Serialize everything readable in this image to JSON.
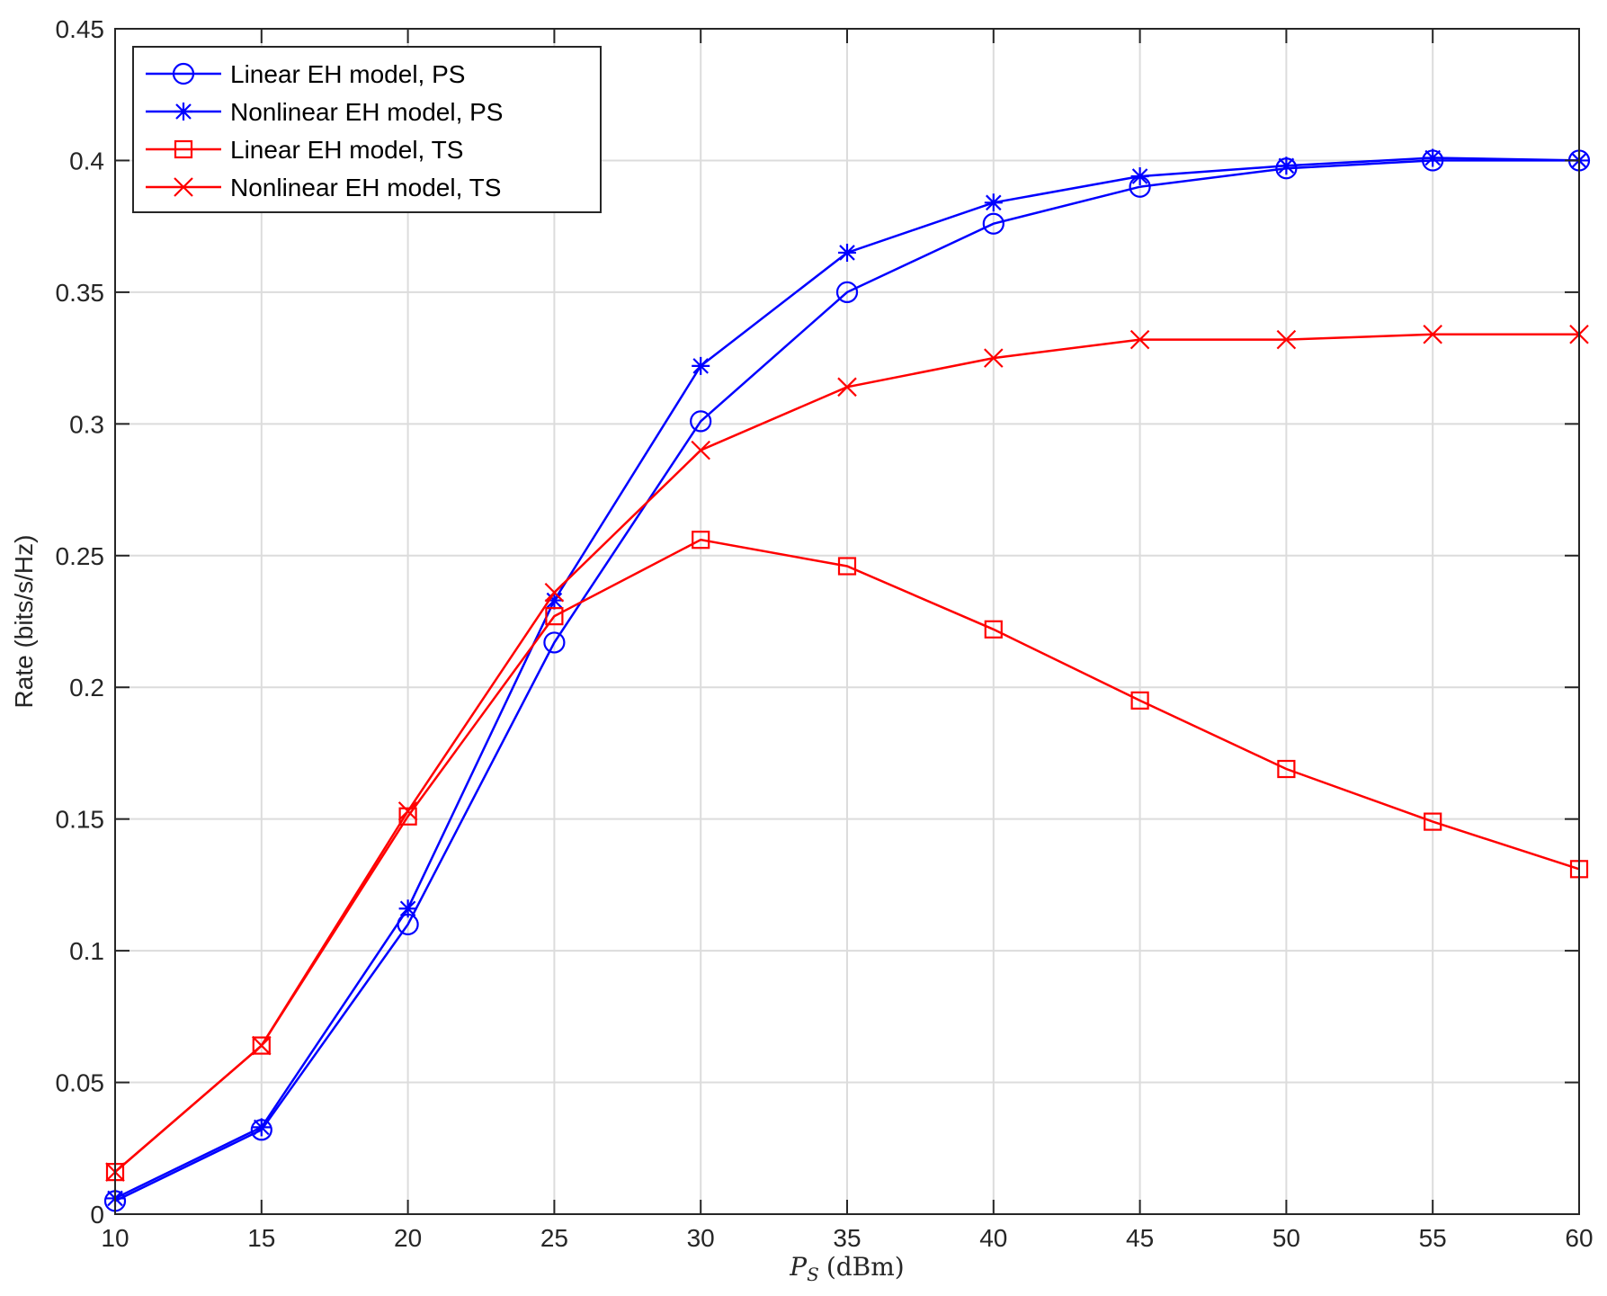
{
  "chart_data": {
    "type": "line",
    "title": "",
    "xlabel": {
      "symbol": "P",
      "subscript": "S",
      "unit": "(dBm)"
    },
    "ylabel": "Rate (bits/s/Hz)",
    "xlim": [
      10,
      60
    ],
    "ylim": [
      0,
      0.45
    ],
    "x_ticks": [
      10,
      15,
      20,
      25,
      30,
      35,
      40,
      45,
      50,
      55,
      60
    ],
    "y_ticks": [
      0,
      0.05,
      0.1,
      0.15,
      0.2,
      0.25,
      0.3,
      0.35,
      0.4,
      0.45
    ],
    "x_tick_labels": [
      "10",
      "15",
      "20",
      "25",
      "30",
      "35",
      "40",
      "45",
      "50",
      "55",
      "60"
    ],
    "y_tick_labels": [
      "0",
      "0.05",
      "0.1",
      "0.15",
      "0.2",
      "0.25",
      "0.3",
      "0.35",
      "0.4",
      "0.45"
    ],
    "grid": true,
    "legend_position": "top-left",
    "x": [
      10,
      15,
      20,
      25,
      30,
      35,
      40,
      45,
      50,
      55,
      60
    ],
    "series": [
      {
        "name": "Linear EH model, PS",
        "color": "#0000ff",
        "marker": "circle",
        "values": [
          0.005,
          0.032,
          0.11,
          0.217,
          0.301,
          0.35,
          0.376,
          0.39,
          0.397,
          0.4,
          0.4
        ]
      },
      {
        "name": "Nonlinear EH model, PS",
        "color": "#0000ff",
        "marker": "asterisk",
        "values": [
          0.006,
          0.033,
          0.116,
          0.233,
          0.322,
          0.365,
          0.384,
          0.394,
          0.398,
          0.401,
          0.4
        ]
      },
      {
        "name": "Linear EH model, TS",
        "color": "#ff0000",
        "marker": "square",
        "values": [
          0.016,
          0.064,
          0.151,
          0.227,
          0.256,
          0.246,
          0.222,
          0.195,
          0.169,
          0.149,
          0.131
        ]
      },
      {
        "name": "Nonlinear EH model, TS",
        "color": "#ff0000",
        "marker": "x",
        "values": [
          0.016,
          0.064,
          0.153,
          0.236,
          0.29,
          0.314,
          0.325,
          0.332,
          0.332,
          0.334,
          0.334
        ]
      }
    ]
  }
}
